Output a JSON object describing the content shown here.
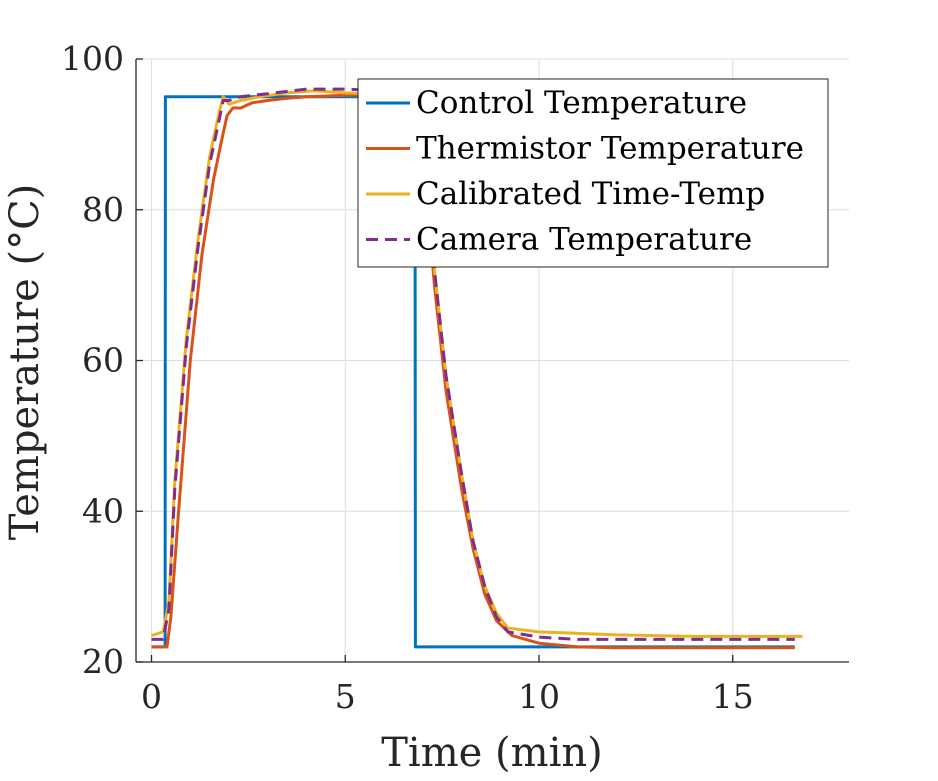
{
  "chart_data": {
    "type": "line",
    "xlabel": "Time (min)",
    "ylabel": "Temperature (°C)",
    "xlim": [
      -0.4,
      18
    ],
    "ylim": [
      20,
      100
    ],
    "xticks": [
      0,
      5,
      10,
      15
    ],
    "yticks": [
      20,
      40,
      60,
      80,
      100
    ],
    "grid": true,
    "legend_position": "top-right",
    "series": [
      {
        "name": "Control Temperature",
        "color": "#0072BD",
        "dash": "solid",
        "x": [
          0,
          0.35,
          0.36,
          6.8,
          6.81,
          16.6
        ],
        "y": [
          22,
          22,
          95,
          95,
          22,
          22
        ]
      },
      {
        "name": "Thermistor Temperature",
        "color": "#D95319",
        "dash": "solid",
        "x": [
          0,
          0.4,
          0.5,
          0.7,
          1.0,
          1.3,
          1.6,
          1.8,
          1.95,
          2.1,
          2.3,
          2.6,
          3.0,
          3.5,
          4.0,
          5.0,
          6.0,
          6.8,
          7.0,
          7.3,
          7.6,
          8.0,
          8.3,
          8.6,
          8.9,
          9.3,
          10.0,
          11.0,
          12.0,
          14.0,
          16.6
        ],
        "y": [
          22,
          22,
          26,
          40,
          60,
          74,
          84,
          89,
          92.5,
          93.5,
          93.5,
          94.2,
          94.5,
          94.8,
          95,
          95.2,
          95.3,
          95.3,
          88,
          70,
          56,
          43,
          35,
          29,
          25.5,
          23.5,
          22.5,
          22.0,
          21.9,
          21.9,
          21.9
        ]
      },
      {
        "name": "Calibrated Time-Temp",
        "color": "#EDB120",
        "dash": "solid",
        "x": [
          0,
          0.3,
          0.45,
          0.6,
          0.9,
          1.2,
          1.5,
          1.75,
          1.85,
          2.0,
          2.3,
          2.8,
          3.5,
          4.2,
          5.0,
          6.0,
          6.8,
          7.0,
          7.3,
          7.6,
          8.0,
          8.3,
          8.6,
          8.9,
          9.2,
          10.0,
          11.0,
          12.0,
          14.0,
          16.8
        ],
        "y": [
          23.5,
          24,
          28,
          44,
          63,
          76,
          87,
          93,
          95,
          94,
          94.5,
          95,
          95.5,
          95.8,
          95.5,
          95.3,
          95.0,
          90,
          72,
          58,
          45,
          36,
          30,
          26.5,
          24.5,
          24,
          23.8,
          23.6,
          23.4,
          23.4
        ]
      },
      {
        "name": "Camera Temperature",
        "color": "#7E2F8E",
        "dash": "dashed",
        "x": [
          0,
          0.3,
          0.45,
          0.6,
          0.9,
          1.2,
          1.5,
          1.75,
          1.85,
          2.0,
          2.3,
          3.0,
          3.5,
          4.0,
          5.0,
          6.0,
          6.8,
          7.0,
          7.3,
          7.6,
          8.0,
          8.3,
          8.6,
          8.9,
          9.2,
          10.0,
          11.0,
          12.0,
          14.0,
          16.6
        ],
        "y": [
          23,
          23,
          27,
          43,
          62,
          75,
          86,
          92,
          94.5,
          94.5,
          95,
          95.4,
          95.7,
          96,
          96,
          95.8,
          95.5,
          90,
          72,
          58,
          45,
          36,
          30,
          26,
          24,
          23.3,
          23.0,
          23.0,
          23.0,
          23.0
        ]
      }
    ]
  }
}
